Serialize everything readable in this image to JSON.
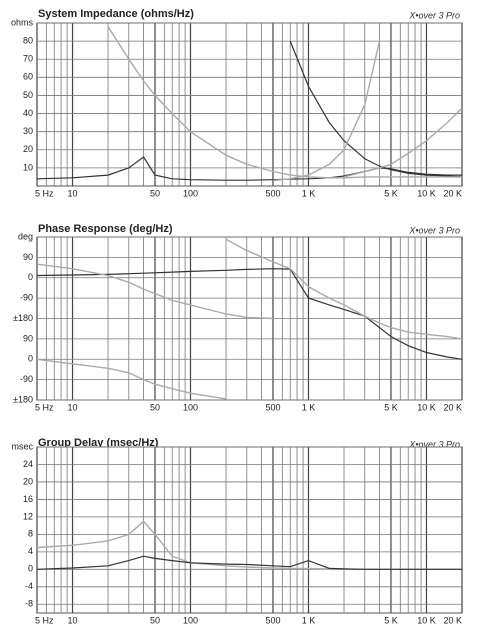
{
  "chart_data": [
    {
      "type": "line",
      "title": "System Impedance (ohms/Hz)",
      "brand": "X•over 3 Pro",
      "xscale": "log",
      "xlim": [
        5,
        20000
      ],
      "grid": true,
      "xticks": [
        {
          "value": 5,
          "label": "5 Hz"
        },
        10,
        50,
        100,
        500,
        {
          "value": 1000,
          "label": "1 K"
        },
        {
          "value": 5000,
          "label": "5 K"
        },
        {
          "value": 10000,
          "label": "10 K"
        },
        {
          "value": 20000,
          "label": "20 K"
        }
      ],
      "xminor": [
        6,
        7,
        8,
        9,
        20,
        30,
        40,
        60,
        70,
        80,
        90,
        200,
        300,
        400,
        600,
        700,
        800,
        900,
        2000,
        3000,
        4000,
        6000,
        7000,
        8000,
        9000
      ],
      "ylim": [
        0,
        90
      ],
      "yticks": [
        {
          "value": 90,
          "label": "ohms"
        },
        80,
        70,
        60,
        50,
        40,
        30,
        20,
        10
      ],
      "x": [
        5,
        10,
        20,
        30,
        40,
        50,
        70,
        100,
        200,
        300,
        500,
        700,
        1000,
        1500,
        2000,
        3000,
        4000,
        5000,
        7000,
        10000,
        15000,
        20000
      ],
      "series": [
        {
          "color": "#333333",
          "values": [
            4,
            4.5,
            6,
            10,
            16,
            6,
            4,
            3.5,
            3.2,
            3.2,
            3.5,
            3.8,
            4,
            4.5,
            5.5,
            8,
            10,
            9.5,
            7.5,
            6.5,
            6,
            6
          ]
        },
        {
          "color": "#333333",
          "values": [
            null,
            null,
            null,
            null,
            null,
            null,
            null,
            null,
            null,
            null,
            null,
            80,
            55,
            35,
            25,
            15,
            11,
            9,
            7,
            6,
            5.5,
            5
          ]
        },
        {
          "color": "#aaaaaa",
          "values": [
            null,
            null,
            88,
            70,
            58,
            50,
            40,
            30,
            17,
            12,
            8,
            6,
            5,
            4.5,
            4.5,
            5,
            5,
            5,
            5,
            5,
            5,
            5
          ]
        },
        {
          "color": "#aaaaaa",
          "values": [
            null,
            null,
            null,
            null,
            null,
            null,
            null,
            null,
            null,
            null,
            3,
            4,
            6,
            12,
            20,
            45,
            80,
            null,
            null,
            null,
            null,
            null
          ]
        },
        {
          "color": "#aaaaaa",
          "values": [
            null,
            null,
            null,
            null,
            null,
            null,
            null,
            null,
            null,
            null,
            null,
            null,
            null,
            null,
            5,
            8,
            10,
            12,
            18,
            25,
            35,
            43
          ]
        }
      ]
    },
    {
      "type": "line",
      "title": "Phase Response (deg/Hz)",
      "brand": "X•over 3 Pro",
      "xscale": "log",
      "xlim": [
        5,
        20000
      ],
      "grid": true,
      "xticks": [
        {
          "value": 5,
          "label": "5 Hz"
        },
        10,
        50,
        100,
        500,
        {
          "value": 1000,
          "label": "1 K"
        },
        {
          "value": 5000,
          "label": "5 K"
        },
        {
          "value": 10000,
          "label": "10 K"
        },
        {
          "value": 20000,
          "label": "20 K"
        }
      ],
      "xminor": [
        6,
        7,
        8,
        9,
        20,
        30,
        40,
        60,
        70,
        80,
        90,
        200,
        300,
        400,
        600,
        700,
        800,
        900,
        2000,
        3000,
        4000,
        6000,
        7000,
        8000,
        9000
      ],
      "ylim": [
        -540,
        180
      ],
      "yticks": [
        {
          "value": 180,
          "label": "deg"
        },
        90,
        0,
        -90,
        {
          "value": -180,
          "label": "±180"
        },
        {
          "value": -270,
          "label": "90"
        },
        {
          "value": -360,
          "label": "0"
        },
        {
          "value": -450,
          "label": "-90"
        },
        {
          "value": -540,
          "label": "±180"
        }
      ],
      "x": [
        5,
        10,
        20,
        30,
        40,
        50,
        70,
        100,
        200,
        300,
        500,
        700,
        1000,
        1500,
        2000,
        3000,
        4000,
        5000,
        7000,
        10000,
        15000,
        20000
      ],
      "series": [
        {
          "color": "#333333",
          "values": [
            10,
            12,
            15,
            18,
            20,
            22,
            25,
            28,
            33,
            37,
            40,
            38,
            -90,
            -120,
            -140,
            -170,
            -220,
            -260,
            -300,
            -330,
            -350,
            -360
          ]
        },
        {
          "color": "#aaaaaa",
          "values": [
            null,
            null,
            null,
            null,
            null,
            null,
            null,
            null,
            170,
            120,
            70,
            40,
            -40,
            -90,
            -120,
            -170,
            -200,
            -220,
            -240,
            -250,
            -260,
            -270
          ]
        },
        {
          "color": "#aaaaaa",
          "values": [
            60,
            40,
            10,
            -20,
            -50,
            -70,
            -100,
            -120,
            -160,
            -175,
            -180,
            null,
            null,
            null,
            null,
            null,
            null,
            null,
            null,
            null,
            null,
            null
          ]
        },
        {
          "color": "#aaaaaa",
          "values": [
            -360,
            -380,
            -400,
            -420,
            -450,
            -470,
            -490,
            -510,
            -535,
            null,
            null,
            null,
            null,
            null,
            null,
            null,
            null,
            null,
            null,
            null,
            null,
            null
          ]
        }
      ]
    },
    {
      "type": "line",
      "title": "Group Delay (msec/Hz)",
      "brand": "X•over 3 Pro",
      "xscale": "log",
      "xlim": [
        5,
        20000
      ],
      "grid": true,
      "xticks": [
        {
          "value": 5,
          "label": "5 Hz"
        },
        10,
        50,
        100,
        500,
        {
          "value": 1000,
          "label": "1 K"
        },
        {
          "value": 5000,
          "label": "5 K"
        },
        {
          "value": 10000,
          "label": "10 K"
        },
        {
          "value": 20000,
          "label": "20 K"
        }
      ],
      "xminor": [
        6,
        7,
        8,
        9,
        20,
        30,
        40,
        60,
        70,
        80,
        90,
        200,
        300,
        400,
        600,
        700,
        800,
        900,
        2000,
        3000,
        4000,
        6000,
        7000,
        8000,
        9000
      ],
      "ylim": [
        -10,
        28
      ],
      "yticks": [
        {
          "value": 28,
          "label": "msec"
        },
        24,
        20,
        16,
        12,
        8,
        4,
        0,
        -4,
        -8
      ],
      "x": [
        5,
        10,
        20,
        30,
        40,
        50,
        70,
        100,
        200,
        300,
        500,
        700,
        1000,
        1500,
        2000,
        3000,
        4000,
        5000,
        7000,
        10000,
        15000,
        20000
      ],
      "series": [
        {
          "color": "#aaaaaa",
          "values": [
            5,
            5.5,
            6.5,
            8,
            11,
            8,
            3,
            1.5,
            0.8,
            0.5,
            0.3,
            0.2,
            0.2,
            0.1,
            0,
            0,
            0,
            0,
            0,
            0,
            0,
            0
          ]
        },
        {
          "color": "#333333",
          "values": [
            0,
            0.3,
            0.8,
            2,
            3,
            2.5,
            2,
            1.5,
            1.2,
            1.1,
            0.8,
            0.6,
            2,
            0.2,
            0.1,
            0,
            0,
            0,
            0,
            0,
            0,
            0
          ]
        }
      ]
    }
  ]
}
